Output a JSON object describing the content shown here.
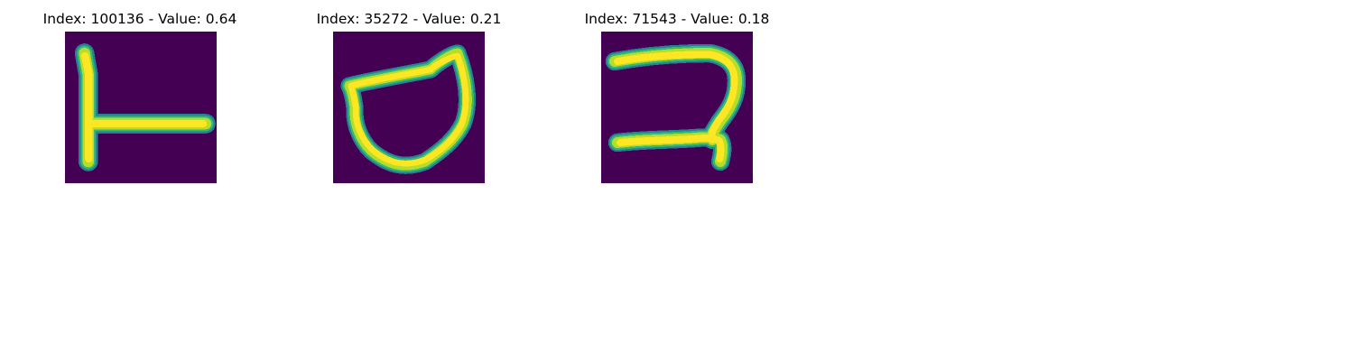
{
  "panels": [
    {
      "title": "Index: 100136 - Value: 0.64",
      "glyph": "character-l-shape"
    },
    {
      "title": "Index: 35272 - Value: 0.21",
      "glyph": "character-loop-shape"
    },
    {
      "title": "Index: 71543 - Value: 0.18",
      "glyph": "character-2-shape"
    }
  ],
  "colors": {
    "background": "#440154",
    "stroke_core": "#fde725",
    "stroke_mid": "#b5de2b",
    "stroke_edge": "#35b779",
    "stroke_outer": "#26828e"
  }
}
